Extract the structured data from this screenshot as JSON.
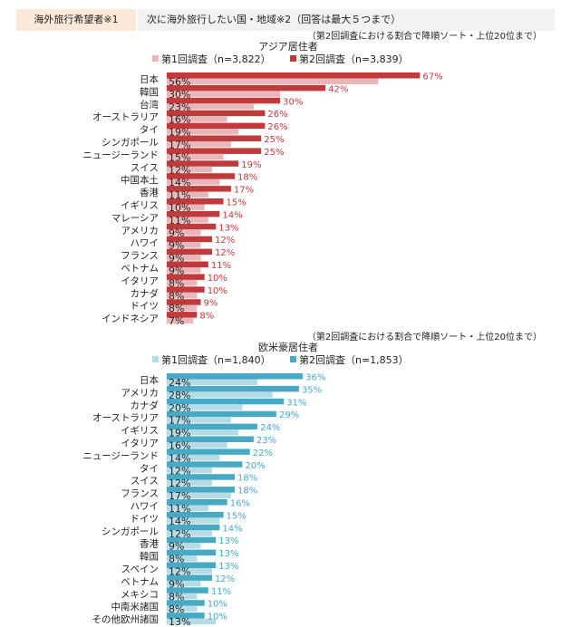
{
  "header": {
    "left": "海外旅行希望者※1",
    "right": "次に海外旅行したい国・地域※2（回答は最大５つまで）"
  },
  "colors": {
    "asia_s1": "#e9b7b9",
    "asia_s2": "#c0393b",
    "west_s1": "#b5dce6",
    "west_s2": "#47a9c4"
  },
  "chart_data": [
    {
      "type": "bar",
      "orientation": "horizontal",
      "note": "（第2回調査における割合で降順ソート・上位20位まで）",
      "title": "アジア居住者",
      "legend": [
        "第1回調査（n=3,822）",
        "第2回調査（n=3,839）"
      ],
      "categories": [
        "日本",
        "韓国",
        "台湾",
        "オーストラリア",
        "タイ",
        "シンガポール",
        "ニュージーランド",
        "スイス",
        "中国本土",
        "香港",
        "イギリス",
        "マレーシア",
        "アメリカ",
        "ハワイ",
        "フランス",
        "ベトナム",
        "イタリア",
        "カナダ",
        "ドイツ",
        "インドネシア"
      ],
      "series": [
        {
          "name": "第1回調査（n=3,822）",
          "values": [
            56,
            30,
            23,
            16,
            19,
            17,
            15,
            12,
            14,
            11,
            10,
            11,
            9,
            9,
            9,
            9,
            8,
            8,
            8,
            7
          ]
        },
        {
          "name": "第2回調査（n=3,839）",
          "values": [
            67,
            42,
            30,
            26,
            26,
            25,
            25,
            19,
            18,
            17,
            15,
            14,
            13,
            12,
            12,
            11,
            10,
            10,
            9,
            8
          ]
        }
      ],
      "unit": "%"
    },
    {
      "type": "bar",
      "orientation": "horizontal",
      "note": "（第2回調査における割合で降順ソート・上位20位まで）",
      "title": "欧米豪居住者",
      "legend": [
        "第1回調査（n=1,840）",
        "第2回調査（n=1,853）"
      ],
      "categories": [
        "日本",
        "アメリカ",
        "カナダ",
        "オーストラリア",
        "イギリス",
        "イタリア",
        "ニュージーランド",
        "タイ",
        "スイス",
        "フランス",
        "ハワイ",
        "ドイツ",
        "シンガポール",
        "香港",
        "韓国",
        "スペイン",
        "ベトナム",
        "メキシコ",
        "中南米諸国",
        "その他欧州諸国"
      ],
      "series": [
        {
          "name": "第1回調査（n=1,840）",
          "values": [
            24,
            28,
            20,
            17,
            19,
            16,
            14,
            12,
            12,
            17,
            11,
            14,
            12,
            9,
            8,
            12,
            9,
            8,
            8,
            13
          ]
        },
        {
          "name": "第2回調査（n=1,853）",
          "values": [
            36,
            35,
            31,
            29,
            24,
            23,
            22,
            20,
            18,
            18,
            16,
            15,
            14,
            13,
            13,
            13,
            12,
            11,
            10,
            10
          ]
        }
      ],
      "unit": "%"
    }
  ]
}
